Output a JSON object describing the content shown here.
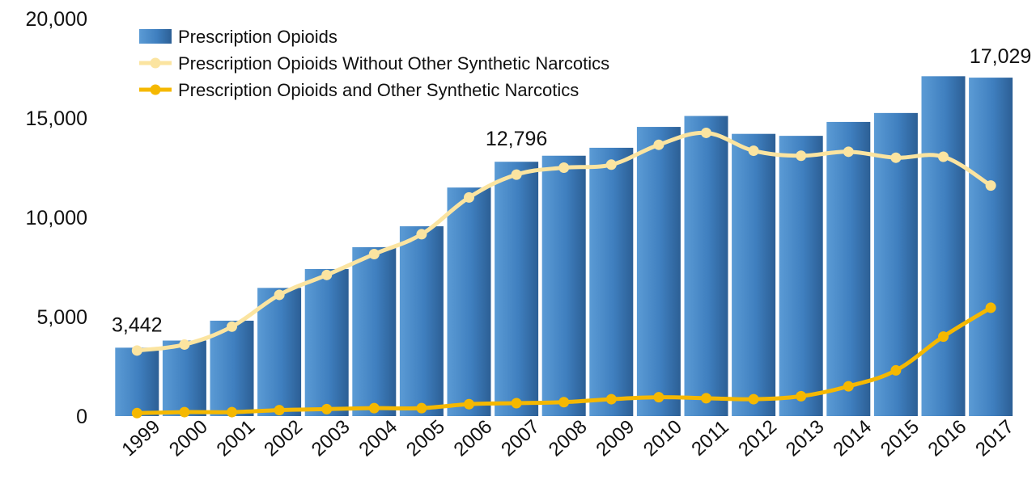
{
  "chart_data": {
    "type": "bar",
    "categories": [
      "1999",
      "2000",
      "2001",
      "2002",
      "2003",
      "2004",
      "2005",
      "2006",
      "2007",
      "2008",
      "2009",
      "2010",
      "2011",
      "2012",
      "2013",
      "2014",
      "2015",
      "2016",
      "2017"
    ],
    "series": [
      {
        "name": "Prescription Opioids",
        "kind": "bar",
        "color": "#4a86c0",
        "values": [
          3442,
          3800,
          4800,
          6450,
          7400,
          8500,
          9550,
          11500,
          12796,
          13100,
          13500,
          14550,
          15100,
          14200,
          14100,
          14800,
          15250,
          17100,
          17029
        ]
      },
      {
        "name": "Prescription Opioids Without Other Synthetic Narcotics",
        "kind": "line",
        "color": "#fbe4a0",
        "values": [
          3300,
          3600,
          4500,
          6100,
          7100,
          8150,
          9150,
          11000,
          12150,
          12500,
          12650,
          13650,
          14250,
          13350,
          13100,
          13300,
          13000,
          13050,
          11600
        ]
      },
      {
        "name": "Prescription Opioids and Other Synthetic Narcotics",
        "kind": "line",
        "color": "#f5b800",
        "values": [
          150,
          200,
          200,
          300,
          350,
          400,
          400,
          600,
          650,
          700,
          850,
          950,
          900,
          850,
          1000,
          1500,
          2300,
          4000,
          5450
        ]
      }
    ],
    "data_labels": [
      {
        "category": "1999",
        "text": "3,442"
      },
      {
        "category": "2007",
        "text": "12,796"
      },
      {
        "category": "2017",
        "text": "17,029"
      }
    ],
    "y_ticks": [
      {
        "value": 0,
        "label": "0"
      },
      {
        "value": 5000,
        "label": "5,000"
      },
      {
        "value": 10000,
        "label": "10,000"
      },
      {
        "value": 15000,
        "label": "15,000"
      },
      {
        "value": 20000,
        "label": "20,000"
      }
    ],
    "ylim": [
      0,
      20000
    ],
    "title": "",
    "xlabel": "",
    "ylabel": "",
    "grid": false,
    "legend_position": "top-left"
  }
}
